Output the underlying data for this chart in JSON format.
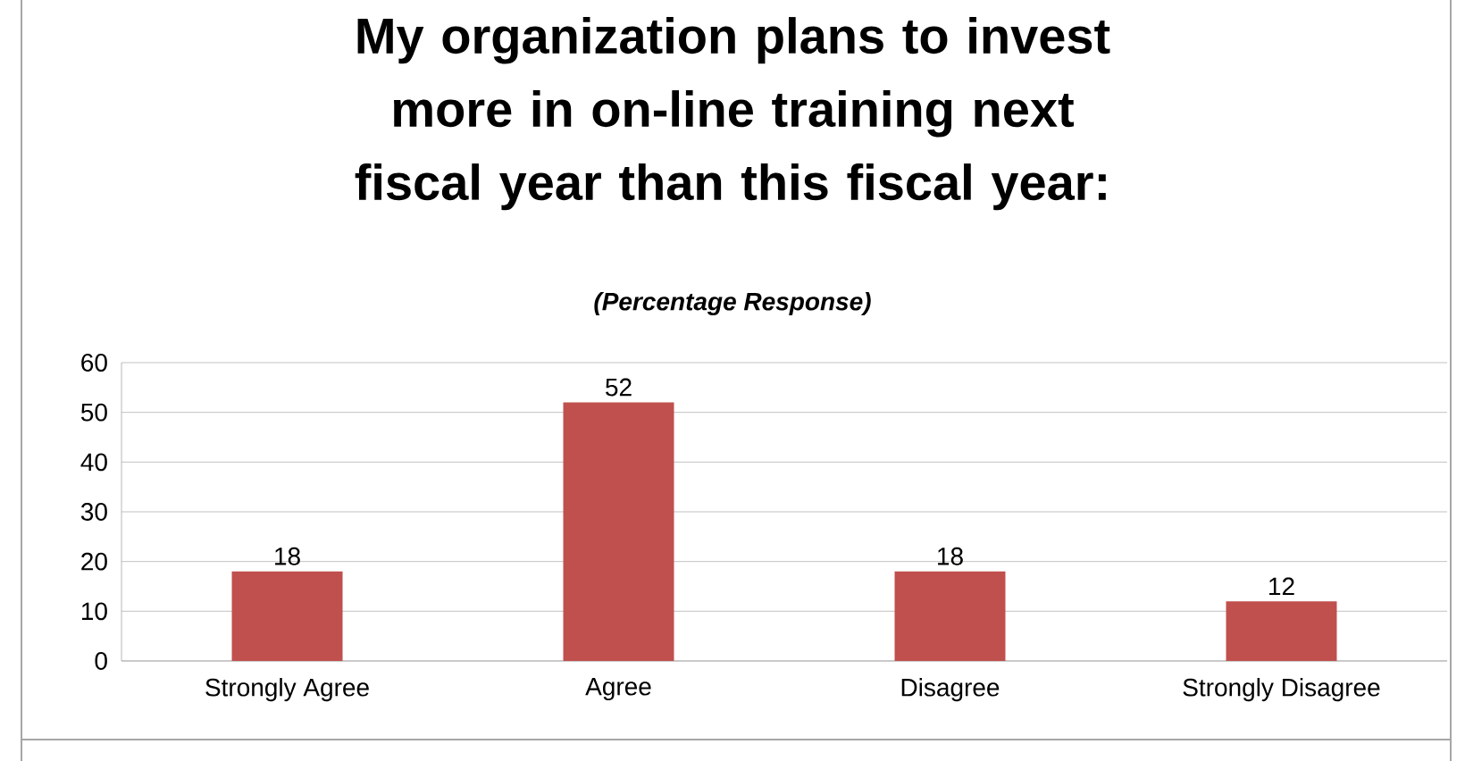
{
  "chart_data": {
    "type": "bar",
    "title": "My organization plans to invest more in on-line training next fiscal year than this fiscal year:",
    "subtitle": "(Percentage Response)",
    "categories": [
      "Strongly Agree",
      "Agree",
      "Disagree",
      "Strongly Disagree"
    ],
    "values": [
      18,
      52,
      18,
      12
    ],
    "color": "#c0504d",
    "ylim": [
      0,
      60
    ],
    "yticks": [
      0,
      10,
      20,
      30,
      40,
      50,
      60
    ],
    "grid": "y",
    "data_labels": true
  }
}
